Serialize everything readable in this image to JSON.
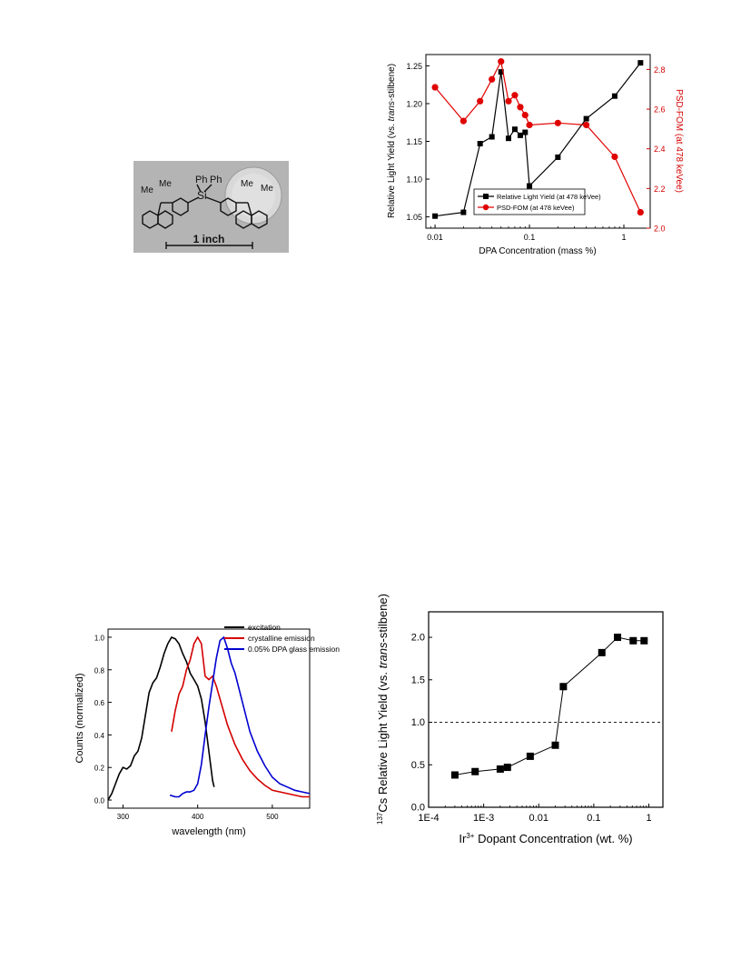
{
  "photo": {
    "label_ph1": "Ph",
    "label_ph2": "Ph",
    "label_si": "Si",
    "label_me1": "Me",
    "label_me2": "Me",
    "label_me3": "Me",
    "label_me4": "Me",
    "scale_label": "1 inch"
  },
  "chart_data": [
    {
      "id": "dpa",
      "type": "line",
      "xlabel": "DPA Concentration (mass %)",
      "ylabel_parts": [
        "Relative Light Yield (vs. ",
        "trans",
        "-stilbene)"
      ],
      "y2label": "PSD-FOM (at 478 keVee)",
      "xscale": "log",
      "xlim": [
        0.008,
        1.9
      ],
      "ylim": [
        1.035,
        1.265
      ],
      "y2lim": [
        2.0,
        2.875
      ],
      "xticks": [
        {
          "v": 0.01,
          "label": "0.01"
        },
        {
          "v": 0.1,
          "label": "0.1"
        },
        {
          "v": 1,
          "label": "1"
        }
      ],
      "yticks": [
        {
          "v": 1.05,
          "label": "1.05"
        },
        {
          "v": 1.1,
          "label": "1.10"
        },
        {
          "v": 1.15,
          "label": "1.15"
        },
        {
          "v": 1.2,
          "label": "1.20"
        },
        {
          "v": 1.25,
          "label": "1.25"
        }
      ],
      "y2ticks": [
        {
          "v": 2.0,
          "label": "2.0"
        },
        {
          "v": 2.2,
          "label": "2.2"
        },
        {
          "v": 2.4,
          "label": "2.4"
        },
        {
          "v": 2.6,
          "label": "2.6"
        },
        {
          "v": 2.8,
          "label": "2.8"
        }
      ],
      "legend_position": "bottom-center",
      "series": [
        {
          "name": "Relative Light Yield (at 478 keVee)",
          "axis": "left",
          "color": "#000000",
          "marker": "square",
          "x": [
            0.01,
            0.02,
            0.03,
            0.04,
            0.05,
            0.06,
            0.07,
            0.08,
            0.09,
            0.1,
            0.2,
            0.4,
            0.8,
            1.5
          ],
          "y": [
            1.051,
            1.056,
            1.147,
            1.156,
            1.242,
            1.154,
            1.166,
            1.158,
            1.162,
            1.091,
            1.129,
            1.18,
            1.21,
            1.254
          ]
        },
        {
          "name": "PSD-FOM (at 478 keVee)",
          "axis": "right",
          "color": "#e00000",
          "marker": "circle",
          "x": [
            0.01,
            0.02,
            0.03,
            0.04,
            0.05,
            0.06,
            0.07,
            0.08,
            0.09,
            0.1,
            0.2,
            0.4,
            0.8,
            1.5
          ],
          "y": [
            2.71,
            2.54,
            2.64,
            2.75,
            2.84,
            2.64,
            2.67,
            2.61,
            2.57,
            2.52,
            2.53,
            2.52,
            2.36,
            2.08
          ]
        }
      ]
    },
    {
      "id": "spectra",
      "type": "line",
      "xlabel": "wavelength (nm)",
      "ylabel": "Counts (normalized)",
      "xlim": [
        280,
        550
      ],
      "ylim": [
        -0.05,
        1.05
      ],
      "xticks": [
        {
          "v": 300,
          "label": "300"
        },
        {
          "v": 400,
          "label": "400"
        },
        {
          "v": 500,
          "label": "500"
        }
      ],
      "yticks": [
        {
          "v": 0.0,
          "label": "0.0"
        },
        {
          "v": 0.2,
          "label": "0.2"
        },
        {
          "v": 0.4,
          "label": "0.4"
        },
        {
          "v": 0.6,
          "label": "0.6"
        },
        {
          "v": 0.8,
          "label": "0.8"
        },
        {
          "v": 1.0,
          "label": "1.0"
        }
      ],
      "legend_position": "top-right",
      "series": [
        {
          "name": "excitation",
          "color": "#000000",
          "x": [
            280,
            285,
            290,
            295,
            300,
            305,
            310,
            315,
            320,
            325,
            330,
            335,
            340,
            345,
            350,
            355,
            360,
            365,
            370,
            375,
            380,
            385,
            390,
            395,
            400,
            405,
            410,
            415,
            420,
            422
          ],
          "y": [
            0.0,
            0.04,
            0.1,
            0.16,
            0.2,
            0.19,
            0.21,
            0.27,
            0.3,
            0.38,
            0.52,
            0.66,
            0.72,
            0.75,
            0.82,
            0.9,
            0.96,
            1.0,
            0.99,
            0.96,
            0.9,
            0.85,
            0.78,
            0.74,
            0.7,
            0.62,
            0.48,
            0.3,
            0.12,
            0.08
          ]
        },
        {
          "name": "crystalline emission",
          "color": "#d40000",
          "x": [
            365,
            370,
            375,
            380,
            385,
            390,
            395,
            400,
            405,
            410,
            415,
            420,
            425,
            430,
            440,
            450,
            460,
            470,
            480,
            490,
            500,
            520,
            540,
            550
          ],
          "y": [
            0.42,
            0.55,
            0.65,
            0.7,
            0.8,
            0.86,
            0.96,
            1.0,
            0.96,
            0.76,
            0.74,
            0.76,
            0.7,
            0.62,
            0.46,
            0.34,
            0.25,
            0.18,
            0.13,
            0.09,
            0.06,
            0.04,
            0.02,
            0.02
          ]
        },
        {
          "name": "0.05% DPA glass emission",
          "color": "#0000d0",
          "x": [
            363,
            370,
            375,
            380,
            385,
            390,
            395,
            400,
            405,
            410,
            415,
            420,
            425,
            430,
            435,
            440,
            445,
            450,
            460,
            470,
            480,
            490,
            500,
            510,
            520,
            530,
            540,
            550
          ],
          "y": [
            0.03,
            0.02,
            0.02,
            0.04,
            0.05,
            0.05,
            0.06,
            0.1,
            0.22,
            0.4,
            0.57,
            0.72,
            0.87,
            0.98,
            1.0,
            0.93,
            0.84,
            0.78,
            0.6,
            0.42,
            0.3,
            0.21,
            0.14,
            0.1,
            0.08,
            0.06,
            0.05,
            0.04
          ]
        }
      ]
    },
    {
      "id": "iridium",
      "type": "line",
      "xlabel_parts": [
        "Ir",
        "3+",
        " Dopant Concentration (wt. %)"
      ],
      "ylabel_parts": [
        "137",
        "Cs Relative Light Yield (vs. ",
        "trans",
        "-stilbene)"
      ],
      "xscale": "log",
      "xlim": [
        0.0001,
        1.8
      ],
      "ylim": [
        0.0,
        2.3
      ],
      "xticks": [
        {
          "v": 0.0001,
          "label": "1E-4"
        },
        {
          "v": 0.001,
          "label": "1E-3"
        },
        {
          "v": 0.01,
          "label": "0.01"
        },
        {
          "v": 0.1,
          "label": "0.1"
        },
        {
          "v": 1,
          "label": "1"
        }
      ],
      "yticks": [
        {
          "v": 0.0,
          "label": "0.0"
        },
        {
          "v": 0.5,
          "label": "0.5"
        },
        {
          "v": 1.0,
          "label": "1.0"
        },
        {
          "v": 1.5,
          "label": "1.5"
        },
        {
          "v": 2.0,
          "label": "2.0"
        }
      ],
      "reference_line_y": 1.0,
      "series": [
        {
          "color": "#000000",
          "marker": "square",
          "x": [
            0.0003,
            0.0007,
            0.002,
            0.0027,
            0.007,
            0.02,
            0.028,
            0.14,
            0.27,
            0.52,
            0.82
          ],
          "y": [
            0.38,
            0.42,
            0.45,
            0.47,
            0.6,
            0.73,
            1.42,
            1.82,
            2.0,
            1.96,
            1.96
          ]
        }
      ]
    }
  ]
}
